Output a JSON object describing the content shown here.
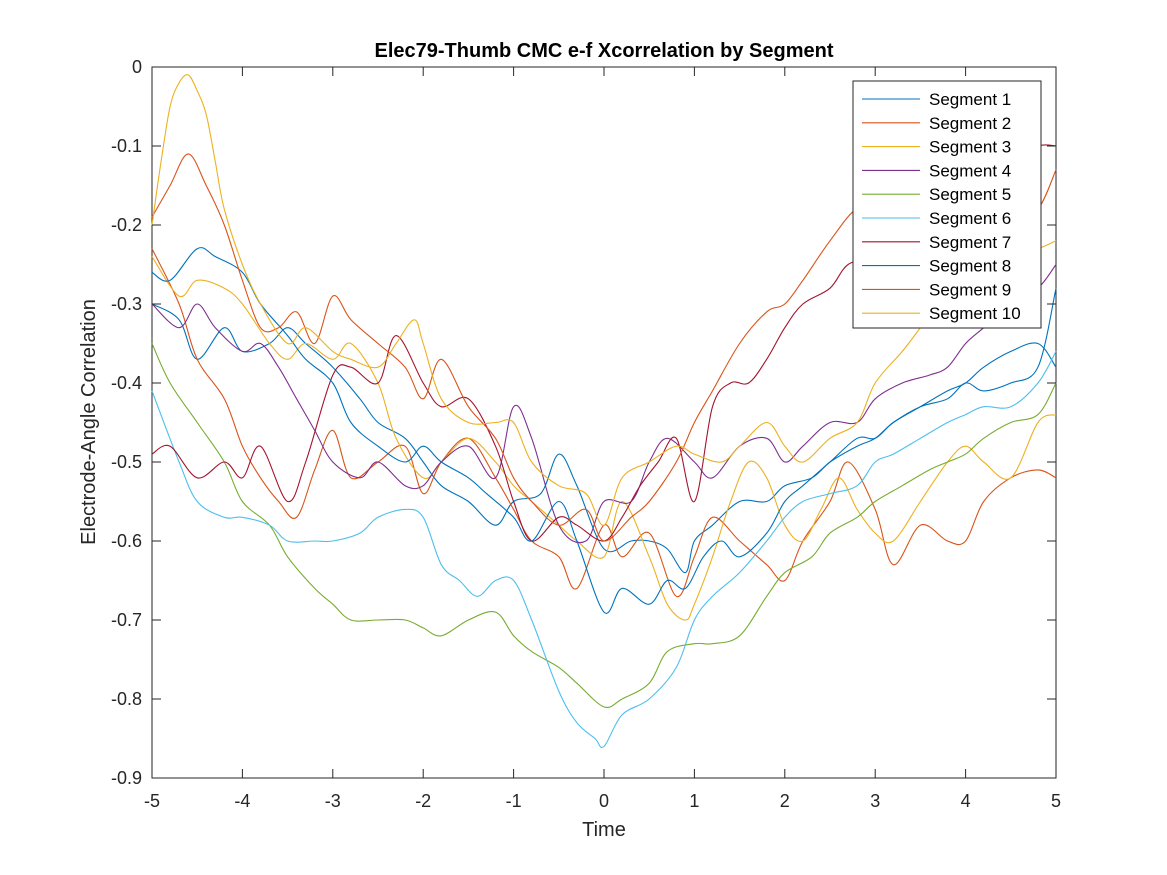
{
  "chart_data": {
    "type": "line",
    "title": "Elec79-Thumb CMC e-f Xcorrelation by Segment",
    "xlabel": "Time",
    "ylabel": "Electrode-Angle Correlation",
    "xlim": [
      -5,
      5
    ],
    "ylim": [
      -0.9,
      0
    ],
    "xticks": [
      -5,
      -4,
      -3,
      -2,
      -1,
      0,
      1,
      2,
      3,
      4,
      5
    ],
    "yticks": [
      0,
      -0.1,
      -0.2,
      -0.3,
      -0.4,
      -0.5,
      -0.6,
      -0.7,
      -0.8,
      -0.9
    ],
    "grid": false,
    "legend_position": "top-right",
    "series": [
      {
        "name": "Segment 1",
        "color": "#0072BD",
        "x": [
          -5,
          -4.7,
          -4.5,
          -4.2,
          -4,
          -3.7,
          -3.5,
          -3.3,
          -3,
          -2.7,
          -2.5,
          -2.2,
          -2,
          -1.8,
          -1.5,
          -1.2,
          -1,
          -0.7,
          -0.5,
          -0.3,
          0,
          0.3,
          0.5,
          0.7,
          0.9,
          1,
          1.2,
          1.5,
          1.8,
          2,
          2.3,
          2.5,
          2.8,
          3,
          3.2,
          3.5,
          3.8,
          4,
          4.2,
          4.5,
          4.8,
          5
        ],
        "y": [
          -0.3,
          -0.32,
          -0.37,
          -0.33,
          -0.36,
          -0.35,
          -0.33,
          -0.35,
          -0.38,
          -0.42,
          -0.45,
          -0.47,
          -0.5,
          -0.53,
          -0.55,
          -0.58,
          -0.55,
          -0.54,
          -0.49,
          -0.53,
          -0.61,
          -0.6,
          -0.6,
          -0.61,
          -0.64,
          -0.6,
          -0.58,
          -0.55,
          -0.55,
          -0.53,
          -0.52,
          -0.5,
          -0.48,
          -0.47,
          -0.45,
          -0.43,
          -0.41,
          -0.4,
          -0.38,
          -0.36,
          -0.35,
          -0.38
        ]
      },
      {
        "name": "Segment 2",
        "color": "#D95319",
        "x": [
          -5,
          -4.7,
          -4.5,
          -4.2,
          -4,
          -3.8,
          -3.6,
          -3.4,
          -3.2,
          -3,
          -2.8,
          -2.5,
          -2.2,
          -2,
          -1.8,
          -1.5,
          -1.2,
          -1,
          -0.8,
          -0.5,
          -0.3,
          0,
          0.2,
          0.5,
          0.8,
          1,
          1.2,
          1.5,
          1.8,
          2,
          2.2,
          2.5,
          2.7,
          3,
          3.2,
          3.5,
          3.8,
          4,
          4.2,
          4.5,
          4.8,
          5
        ],
        "y": [
          -0.23,
          -0.3,
          -0.37,
          -0.42,
          -0.48,
          -0.52,
          -0.55,
          -0.57,
          -0.51,
          -0.46,
          -0.52,
          -0.5,
          -0.48,
          -0.54,
          -0.5,
          -0.47,
          -0.52,
          -0.56,
          -0.6,
          -0.62,
          -0.66,
          -0.58,
          -0.62,
          -0.59,
          -0.67,
          -0.62,
          -0.57,
          -0.6,
          -0.63,
          -0.65,
          -0.6,
          -0.55,
          -0.5,
          -0.56,
          -0.63,
          -0.58,
          -0.6,
          -0.6,
          -0.55,
          -0.52,
          -0.51,
          -0.52
        ]
      },
      {
        "name": "Segment 3",
        "color": "#EDB120",
        "x": [
          -5,
          -4.7,
          -4.5,
          -4.2,
          -4,
          -3.7,
          -3.5,
          -3.3,
          -3,
          -2.8,
          -2.5,
          -2.3,
          -2,
          -1.8,
          -1.5,
          -1.2,
          -1,
          -0.8,
          -0.5,
          -0.3,
          0,
          0.2,
          0.5,
          0.7,
          0.9,
          1,
          1.2,
          1.4,
          1.6,
          1.8,
          2,
          2.2,
          2.4,
          2.6,
          2.8,
          3,
          3.2,
          3.5,
          3.8,
          4,
          4.2,
          4.5,
          4.8,
          5
        ],
        "y": [
          -0.24,
          -0.29,
          -0.27,
          -0.28,
          -0.3,
          -0.35,
          -0.37,
          -0.35,
          -0.37,
          -0.35,
          -0.4,
          -0.47,
          -0.52,
          -0.5,
          -0.47,
          -0.5,
          -0.53,
          -0.55,
          -0.58,
          -0.6,
          -0.62,
          -0.55,
          -0.62,
          -0.68,
          -0.7,
          -0.68,
          -0.62,
          -0.55,
          -0.5,
          -0.52,
          -0.58,
          -0.6,
          -0.56,
          -0.52,
          -0.56,
          -0.59,
          -0.6,
          -0.55,
          -0.5,
          -0.48,
          -0.5,
          -0.52,
          -0.45,
          -0.44
        ]
      },
      {
        "name": "Segment 4",
        "color": "#7E2F8E",
        "x": [
          -5,
          -4.7,
          -4.5,
          -4.3,
          -4,
          -3.8,
          -3.6,
          -3.4,
          -3.2,
          -3,
          -2.7,
          -2.5,
          -2.2,
          -2,
          -1.8,
          -1.5,
          -1.2,
          -1,
          -0.8,
          -0.5,
          -0.2,
          0,
          0.3,
          0.5,
          0.7,
          1,
          1.2,
          1.5,
          1.8,
          2,
          2.2,
          2.5,
          2.8,
          3,
          3.3,
          3.6,
          3.8,
          4,
          4.2,
          4.5,
          4.8,
          5
        ],
        "y": [
          -0.3,
          -0.33,
          -0.3,
          -0.33,
          -0.36,
          -0.35,
          -0.38,
          -0.42,
          -0.46,
          -0.5,
          -0.52,
          -0.5,
          -0.53,
          -0.53,
          -0.5,
          -0.48,
          -0.52,
          -0.43,
          -0.47,
          -0.58,
          -0.6,
          -0.55,
          -0.55,
          -0.5,
          -0.47,
          -0.5,
          -0.52,
          -0.48,
          -0.47,
          -0.5,
          -0.48,
          -0.45,
          -0.45,
          -0.42,
          -0.4,
          -0.39,
          -0.38,
          -0.35,
          -0.33,
          -0.3,
          -0.28,
          -0.25
        ]
      },
      {
        "name": "Segment 5",
        "color": "#77AC30",
        "x": [
          -5,
          -4.8,
          -4.5,
          -4.2,
          -4,
          -3.7,
          -3.5,
          -3.2,
          -3,
          -2.8,
          -2.5,
          -2.2,
          -2,
          -1.8,
          -1.5,
          -1.2,
          -1,
          -0.8,
          -0.5,
          -0.3,
          0,
          0.2,
          0.5,
          0.7,
          1,
          1.2,
          1.5,
          1.8,
          2,
          2.3,
          2.5,
          2.8,
          3,
          3.3,
          3.6,
          3.8,
          4,
          4.2,
          4.5,
          4.8,
          5
        ],
        "y": [
          -0.35,
          -0.4,
          -0.45,
          -0.5,
          -0.55,
          -0.58,
          -0.62,
          -0.66,
          -0.68,
          -0.7,
          -0.7,
          -0.7,
          -0.71,
          -0.72,
          -0.7,
          -0.69,
          -0.72,
          -0.74,
          -0.76,
          -0.78,
          -0.81,
          -0.8,
          -0.78,
          -0.74,
          -0.73,
          -0.73,
          -0.72,
          -0.67,
          -0.64,
          -0.62,
          -0.59,
          -0.57,
          -0.55,
          -0.53,
          -0.51,
          -0.5,
          -0.49,
          -0.47,
          -0.45,
          -0.44,
          -0.4
        ]
      },
      {
        "name": "Segment 6",
        "color": "#4DBEEE",
        "x": [
          -5,
          -4.7,
          -4.5,
          -4.2,
          -4,
          -3.7,
          -3.5,
          -3.2,
          -3,
          -2.7,
          -2.5,
          -2.2,
          -2,
          -1.8,
          -1.6,
          -1.4,
          -1.2,
          -1,
          -0.8,
          -0.5,
          -0.3,
          -0.1,
          0,
          0.2,
          0.5,
          0.8,
          1,
          1.2,
          1.5,
          1.8,
          2,
          2.2,
          2.5,
          2.8,
          3,
          3.2,
          3.5,
          3.8,
          4,
          4.2,
          4.5,
          4.8,
          5
        ],
        "y": [
          -0.41,
          -0.5,
          -0.55,
          -0.57,
          -0.57,
          -0.58,
          -0.6,
          -0.6,
          -0.6,
          -0.59,
          -0.57,
          -0.56,
          -0.57,
          -0.63,
          -0.65,
          -0.67,
          -0.65,
          -0.65,
          -0.7,
          -0.79,
          -0.83,
          -0.85,
          -0.86,
          -0.82,
          -0.8,
          -0.76,
          -0.7,
          -0.67,
          -0.64,
          -0.6,
          -0.57,
          -0.55,
          -0.54,
          -0.53,
          -0.5,
          -0.49,
          -0.47,
          -0.45,
          -0.44,
          -0.43,
          -0.43,
          -0.4,
          -0.36
        ]
      },
      {
        "name": "Segment 7",
        "color": "#A2142F",
        "x": [
          -5,
          -4.8,
          -4.5,
          -4.2,
          -4,
          -3.8,
          -3.5,
          -3.3,
          -3,
          -2.8,
          -2.5,
          -2.3,
          -2,
          -1.8,
          -1.5,
          -1.2,
          -1,
          -0.8,
          -0.5,
          -0.3,
          0,
          0.2,
          0.4,
          0.6,
          0.8,
          1,
          1.2,
          1.4,
          1.6,
          1.8,
          2,
          2.2,
          2.5,
          2.7,
          3,
          3.2,
          3.5,
          3.8,
          4,
          4.2,
          4.5,
          4.8,
          5
        ],
        "y": [
          -0.49,
          -0.48,
          -0.52,
          -0.5,
          -0.52,
          -0.48,
          -0.55,
          -0.5,
          -0.39,
          -0.38,
          -0.4,
          -0.34,
          -0.4,
          -0.43,
          -0.42,
          -0.48,
          -0.55,
          -0.6,
          -0.57,
          -0.58,
          -0.6,
          -0.57,
          -0.53,
          -0.5,
          -0.47,
          -0.55,
          -0.43,
          -0.4,
          -0.4,
          -0.37,
          -0.33,
          -0.3,
          -0.28,
          -0.25,
          -0.24,
          -0.22,
          -0.2,
          -0.17,
          -0.15,
          -0.13,
          -0.12,
          -0.1,
          -0.1
        ]
      },
      {
        "name": "Segment 8",
        "color": "#0072BD",
        "x": [
          -5,
          -4.8,
          -4.5,
          -4.3,
          -4,
          -3.8,
          -3.5,
          -3.3,
          -3,
          -2.8,
          -2.5,
          -2.2,
          -2,
          -1.8,
          -1.5,
          -1.3,
          -1,
          -0.8,
          -0.5,
          -0.3,
          0,
          0.2,
          0.5,
          0.7,
          0.9,
          1.1,
          1.3,
          1.5,
          1.8,
          2,
          2.2,
          2.5,
          2.8,
          3,
          3.2,
          3.5,
          3.8,
          4,
          4.2,
          4.5,
          4.8,
          5
        ],
        "y": [
          -0.26,
          -0.27,
          -0.23,
          -0.24,
          -0.26,
          -0.3,
          -0.34,
          -0.37,
          -0.4,
          -0.45,
          -0.48,
          -0.5,
          -0.48,
          -0.5,
          -0.52,
          -0.54,
          -0.57,
          -0.6,
          -0.55,
          -0.6,
          -0.69,
          -0.66,
          -0.68,
          -0.65,
          -0.66,
          -0.62,
          -0.6,
          -0.62,
          -0.59,
          -0.55,
          -0.53,
          -0.5,
          -0.47,
          -0.47,
          -0.45,
          -0.43,
          -0.42,
          -0.4,
          -0.41,
          -0.4,
          -0.38,
          -0.28
        ]
      },
      {
        "name": "Segment 9",
        "color": "#D95319",
        "x": [
          -5,
          -4.8,
          -4.6,
          -4.4,
          -4.2,
          -4,
          -3.8,
          -3.6,
          -3.4,
          -3.2,
          -3,
          -2.8,
          -2.5,
          -2.2,
          -2,
          -1.8,
          -1.5,
          -1.2,
          -1,
          -0.8,
          -0.5,
          -0.2,
          0,
          0.3,
          0.5,
          0.8,
          1,
          1.2,
          1.5,
          1.8,
          2,
          2.2,
          2.5,
          2.8,
          3,
          3.2,
          3.5,
          3.8,
          4,
          4.2,
          4.5,
          4.8,
          5
        ],
        "y": [
          -0.19,
          -0.15,
          -0.11,
          -0.15,
          -0.2,
          -0.27,
          -0.33,
          -0.33,
          -0.31,
          -0.35,
          -0.29,
          -0.32,
          -0.35,
          -0.38,
          -0.42,
          -0.37,
          -0.43,
          -0.47,
          -0.52,
          -0.55,
          -0.58,
          -0.56,
          -0.6,
          -0.57,
          -0.55,
          -0.5,
          -0.45,
          -0.41,
          -0.35,
          -0.31,
          -0.3,
          -0.27,
          -0.22,
          -0.18,
          -0.2,
          -0.22,
          -0.25,
          -0.26,
          -0.24,
          -0.22,
          -0.2,
          -0.18,
          -0.13
        ]
      },
      {
        "name": "Segment 10",
        "color": "#EDB120",
        "x": [
          -5,
          -4.9,
          -4.8,
          -4.7,
          -4.6,
          -4.5,
          -4.4,
          -4.3,
          -4.2,
          -4,
          -3.8,
          -3.5,
          -3.3,
          -3,
          -2.8,
          -2.5,
          -2.3,
          -2.1,
          -2,
          -1.8,
          -1.5,
          -1.2,
          -1,
          -0.8,
          -0.5,
          -0.2,
          0,
          0.2,
          0.5,
          0.8,
          1,
          1.3,
          1.5,
          1.8,
          2,
          2.2,
          2.5,
          2.8,
          3,
          3.3,
          3.5,
          3.7,
          4,
          4.2,
          4.5,
          4.8,
          5
        ],
        "y": [
          -0.2,
          -0.12,
          -0.05,
          -0.02,
          -0.01,
          -0.03,
          -0.06,
          -0.12,
          -0.18,
          -0.25,
          -0.3,
          -0.35,
          -0.33,
          -0.36,
          -0.37,
          -0.38,
          -0.35,
          -0.32,
          -0.35,
          -0.42,
          -0.45,
          -0.45,
          -0.45,
          -0.5,
          -0.53,
          -0.54,
          -0.58,
          -0.52,
          -0.5,
          -0.48,
          -0.49,
          -0.5,
          -0.48,
          -0.45,
          -0.48,
          -0.5,
          -0.47,
          -0.45,
          -0.4,
          -0.36,
          -0.33,
          -0.3,
          -0.28,
          -0.25,
          -0.24,
          -0.23,
          -0.22
        ]
      }
    ]
  }
}
